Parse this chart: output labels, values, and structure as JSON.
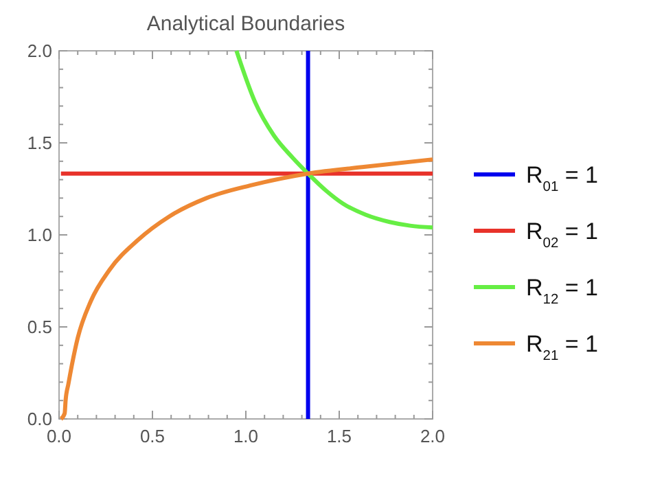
{
  "chart_data": {
    "type": "line",
    "title": "Analytical Boundaries",
    "xlim": [
      0,
      2
    ],
    "ylim": [
      0,
      2
    ],
    "xticks": [
      {
        "value": 0,
        "label": "0.0"
      },
      {
        "value": 0.1,
        "label": null
      },
      {
        "value": 0.2,
        "label": null
      },
      {
        "value": 0.3,
        "label": null
      },
      {
        "value": 0.4,
        "label": null
      },
      0.5,
      {
        "value": 0.6,
        "label": null
      },
      {
        "value": 0.7,
        "label": null
      },
      {
        "value": 0.8,
        "label": null
      },
      {
        "value": 0.9,
        "label": null
      },
      {
        "value": 1,
        "label": "1.0"
      },
      {
        "value": 1.1,
        "label": null
      },
      {
        "value": 1.2,
        "label": null
      },
      {
        "value": 1.3,
        "label": null
      },
      {
        "value": 1.4,
        "label": null
      },
      1.5,
      {
        "value": 1.6,
        "label": null
      },
      {
        "value": 1.7,
        "label": null
      },
      {
        "value": 1.8,
        "label": null
      },
      {
        "value": 1.9,
        "label": null
      },
      {
        "value": 2,
        "label": "2.0"
      }
    ],
    "yticks": [
      {
        "value": 0,
        "label": "0.0"
      },
      {
        "value": 0.1,
        "label": null
      },
      {
        "value": 0.2,
        "label": null
      },
      {
        "value": 0.3,
        "label": null
      },
      {
        "value": 0.4,
        "label": null
      },
      0.5,
      {
        "value": 0.6,
        "label": null
      },
      {
        "value": 0.7,
        "label": null
      },
      {
        "value": 0.8,
        "label": null
      },
      {
        "value": 0.9,
        "label": null
      },
      {
        "value": 1,
        "label": "1.0"
      },
      {
        "value": 1.1,
        "label": null
      },
      {
        "value": 1.2,
        "label": null
      },
      {
        "value": 1.3,
        "label": null
      },
      {
        "value": 1.4,
        "label": null
      },
      1.5,
      {
        "value": 1.6,
        "label": null
      },
      {
        "value": 1.7,
        "label": null
      },
      {
        "value": 1.8,
        "label": null
      },
      {
        "value": 1.9,
        "label": null
      },
      {
        "value": 2,
        "label": "2.0"
      }
    ],
    "grid": false,
    "legend": "right",
    "marker": "none",
    "line_style": "solid",
    "series": [
      {
        "name": "R$_{01}$ = 1",
        "color": "#0000ee",
        "x": [
          1.333,
          1.333
        ],
        "values": [
          0,
          2
        ]
      },
      {
        "name": "R$_{02}$ = 1",
        "color": "#e8322a",
        "x": [
          0.01,
          2
        ],
        "values": [
          1.333,
          1.333
        ]
      },
      {
        "name": "R$_{12}$ = 1",
        "color": "#66ee44",
        "x": [
          0.95,
          1.05,
          1.15,
          1.25,
          1.333,
          1.43,
          1.52,
          1.64,
          1.77,
          1.88,
          2
        ],
        "values": [
          2,
          1.72,
          1.54,
          1.42,
          1.333,
          1.24,
          1.17,
          1.11,
          1.07,
          1.05,
          1.04
        ]
      },
      {
        "name": "R$_{21}$ = 1",
        "color": "#ee8833",
        "x": [
          0.01,
          0.03,
          0.035,
          0.05,
          0.1,
          0.17,
          0.27,
          0.42,
          0.59,
          0.79,
          1.03,
          1.333,
          1.64,
          2
        ],
        "values": [
          0,
          0.03,
          0.1,
          0.19,
          0.44,
          0.64,
          0.81,
          0.97,
          1.1,
          1.2,
          1.27,
          1.333,
          1.37,
          1.41
        ]
      }
    ]
  }
}
